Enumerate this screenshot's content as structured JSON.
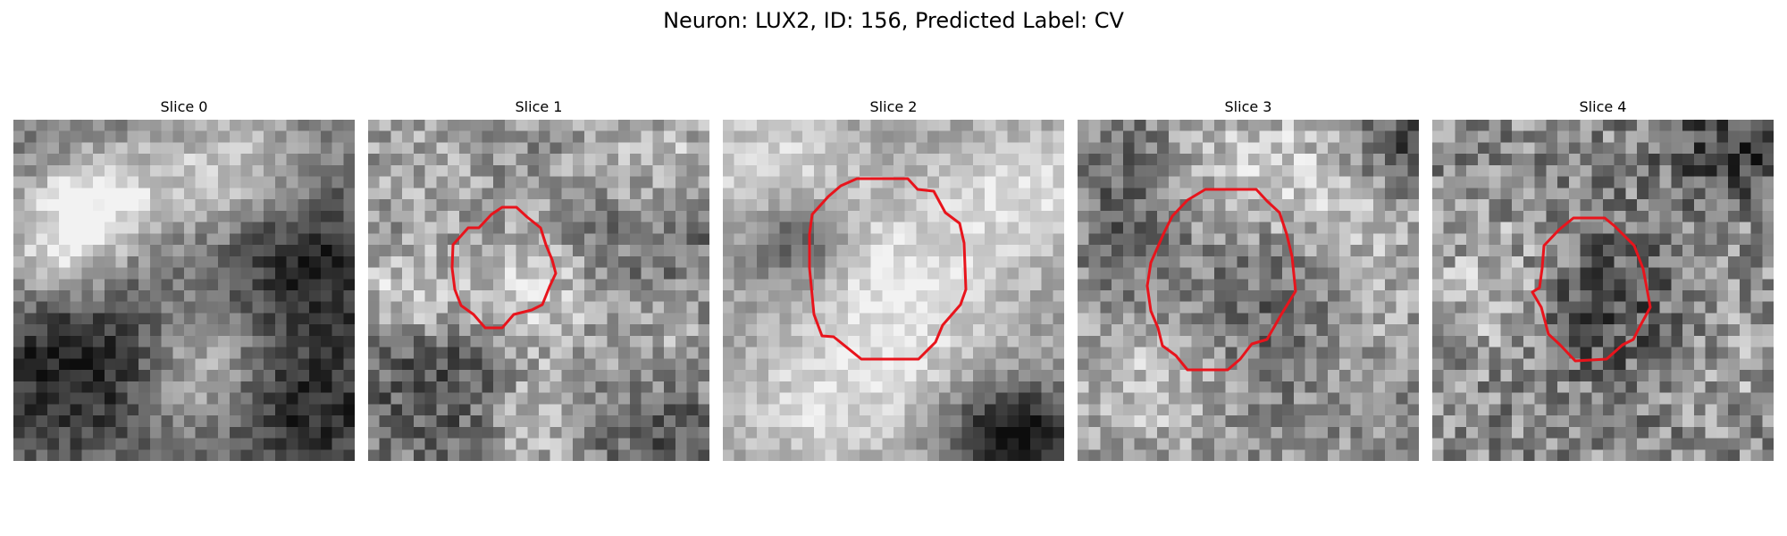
{
  "figure": {
    "title": "Neuron: LUX2, ID: 156, Predicted Label: CV"
  },
  "colors": {
    "contour": "#e8141c",
    "background": "#ffffff"
  },
  "panels": [
    {
      "title": "Slice 0",
      "has_contour": false
    },
    {
      "title": "Slice 1",
      "has_contour": true
    },
    {
      "title": "Slice 2",
      "has_contour": true
    },
    {
      "title": "Slice 3",
      "has_contour": true
    },
    {
      "title": "Slice 4",
      "has_contour": true
    }
  ]
}
